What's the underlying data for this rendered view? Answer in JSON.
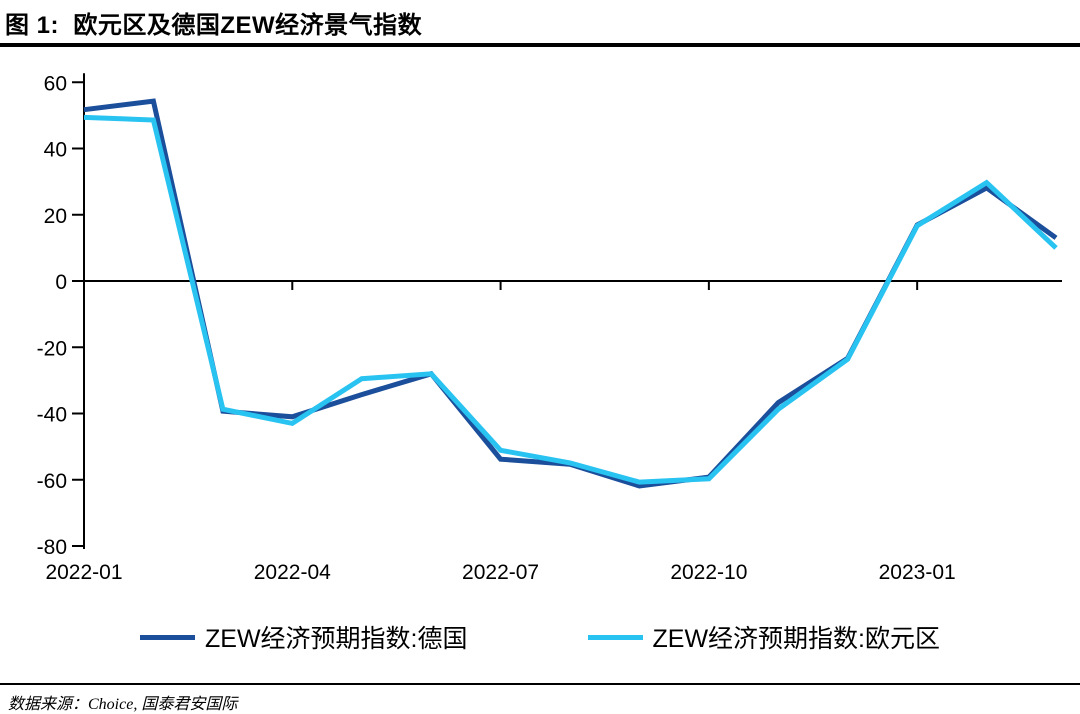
{
  "title": "图 1:  欧元区及德国ZEW经济景气指数",
  "footer": {
    "source": "数据来源：Choice, 国泰君安国际"
  },
  "colors": {
    "germany_line": "#1B4F9B",
    "eurozone_line": "#29C3F1",
    "axis": "#000000"
  },
  "chart_data": {
    "type": "line",
    "title": "欧元区及德国ZEW经济景气指数",
    "x": [
      "2022-01",
      "2022-02",
      "2022-03",
      "2022-04",
      "2022-05",
      "2022-06",
      "2022-07",
      "2022-08",
      "2022-09",
      "2022-10",
      "2022-11",
      "2022-12",
      "2023-01",
      "2023-02",
      "2023-03"
    ],
    "x_tick_indices": [
      0,
      3,
      6,
      9,
      12
    ],
    "x_tick_labels": [
      "2022-01",
      "2022-04",
      "2022-07",
      "2022-10",
      "2023-01"
    ],
    "y_ticks": [
      60,
      40,
      20,
      0,
      -20,
      -40,
      -60,
      -80
    ],
    "ylim": [
      -80,
      60
    ],
    "grid": false,
    "legend_position": "bottom",
    "series": [
      {
        "name": "ZEW经济预期指数:德国",
        "color": "#1B4F9B",
        "values": [
          51.7,
          54.3,
          -39.3,
          -41.0,
          -34.3,
          -28.0,
          -53.8,
          -55.3,
          -61.9,
          -59.2,
          -36.7,
          -23.3,
          16.9,
          28.1,
          13.0
        ]
      },
      {
        "name": "ZEW经济预期指数:欧元区",
        "color": "#29C3F1",
        "values": [
          49.4,
          48.6,
          -38.7,
          -43.0,
          -29.5,
          -28.0,
          -51.1,
          -54.9,
          -60.7,
          -59.7,
          -38.7,
          -23.6,
          16.7,
          29.7,
          10.0
        ]
      }
    ]
  }
}
